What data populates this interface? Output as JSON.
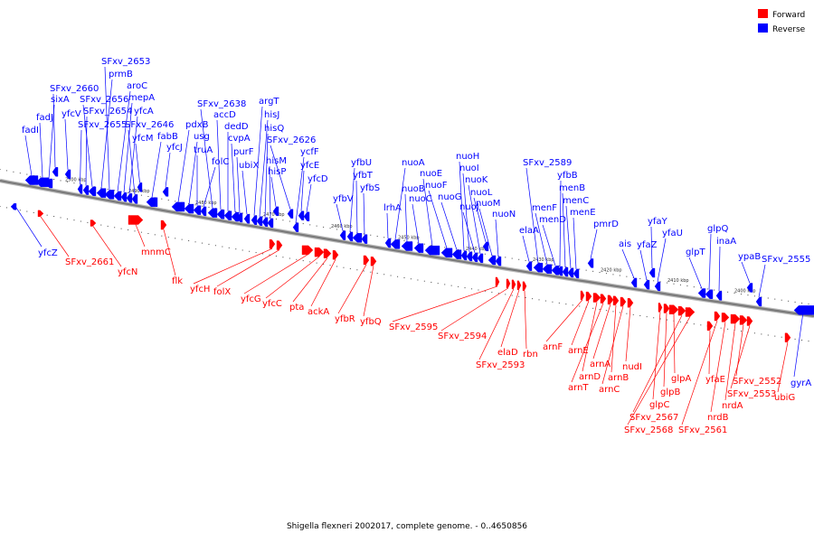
{
  "legend": {
    "forward": "Forward",
    "reverse": "Reverse"
  },
  "colors": {
    "forward": "#ff0000",
    "reverse": "#0000ff",
    "backbone": "#7a7a7a"
  },
  "caption": "Shigella flexneri 2002017, complete genome. - 0..4650856",
  "ticks": [
    "2500 kbp",
    "2490 kbp",
    "2480 kbp",
    "2470 kbp",
    "2460 kbp",
    "2450 kbp",
    "2440 kbp",
    "2430 kbp",
    "2420 kbp",
    "2410 kbp",
    "2400 kbp"
  ],
  "reverse_genes": [
    "fadI",
    "fadJ",
    "sixA",
    "SFxv_2660",
    "yfcV",
    "SFxv_2655",
    "SFxv_2654",
    "SFxv_2656",
    "prmB",
    "SFxv_2653",
    "aroC",
    "mepA",
    "yfcA",
    "SFxv_2646",
    "yfcM",
    "fabB",
    "yfcJ",
    "pdxB",
    "usg",
    "truA",
    "folC",
    "SFxv_2638",
    "accD",
    "dedD",
    "cvpA",
    "purF",
    "ubiX",
    "argT",
    "hisJ",
    "hisQ",
    "hisM",
    "hisP",
    "SFxv_2626",
    "ycfF",
    "yfcE",
    "yfcD",
    "yfbV",
    "yfbU",
    "yfbT",
    "yfbS",
    "lrhA",
    "nuoA",
    "nuoB",
    "nuoC",
    "nuoE",
    "nuoF",
    "nuoG",
    "nuoH",
    "nuoI",
    "nuoJ",
    "nuoK",
    "nuoL",
    "nuoM",
    "nuoN",
    "elaA",
    "SFxv_2589",
    "menF",
    "menD",
    "yfbB",
    "menB",
    "menC",
    "menE",
    "pmrD",
    "ais",
    "yfaZ",
    "yfaY",
    "yfaU",
    "glpT",
    "glpQ",
    "inaA",
    "ypaB",
    "SFxv_2555",
    "yfcZ",
    "gyrA"
  ],
  "forward_genes": [
    "SFxv_2661",
    "yfcN",
    "mnmC",
    "flk",
    "yfcH",
    "folX",
    "yfcG",
    "yfcC",
    "pta",
    "ackA",
    "yfbR",
    "yfbQ",
    "SFxv_2595",
    "SFxv_2594",
    "SFxv_2593",
    "elaD",
    "rbn",
    "arnF",
    "arnE",
    "arnD",
    "arnT",
    "arnA",
    "arnB",
    "arnC",
    "nudI",
    "glpC",
    "glpB",
    "glpA",
    "SFxv_2567",
    "SFxv_2568",
    "yfaE",
    "SFxv_2561",
    "nrdB",
    "nrdA",
    "SFxv_2552",
    "SFxv_2553",
    "ubiG"
  ]
}
